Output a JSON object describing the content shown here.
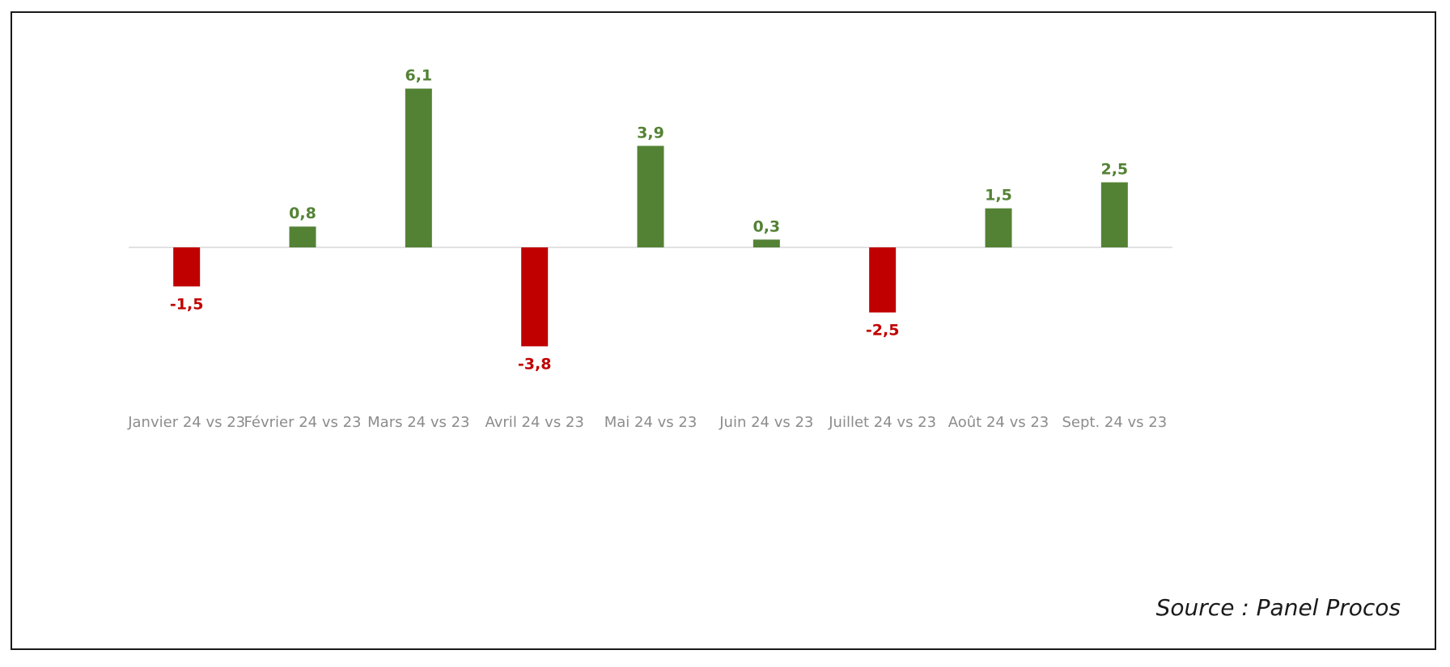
{
  "chart_data": {
    "type": "bar",
    "categories": [
      "Janvier 24 vs 23",
      "Février 24 vs 23",
      "Mars 24 vs 23",
      "Avril 24 vs 23",
      "Mai 24 vs 23",
      "Juin 24 vs 23",
      "Juillet 24 vs 23",
      "Août 24 vs 23",
      "Sept. 24 vs 23"
    ],
    "values": [
      -1.5,
      0.8,
      6.1,
      -3.8,
      3.9,
      0.3,
      -2.5,
      1.5,
      2.5
    ],
    "data_labels": [
      "-1,5",
      "0,8",
      "6,1",
      "-3,8",
      "3,9",
      "0,3",
      "-2,5",
      "1,5",
      "2,5"
    ],
    "title": "",
    "xlabel": "",
    "ylabel": "",
    "grid": false,
    "legend": "none",
    "colors": {
      "positive": "#548235",
      "negative": "#C00000",
      "baseline": "#d9d9d9",
      "axis_labels": "#8c8c8c"
    }
  },
  "source": "Source : Panel Procos"
}
